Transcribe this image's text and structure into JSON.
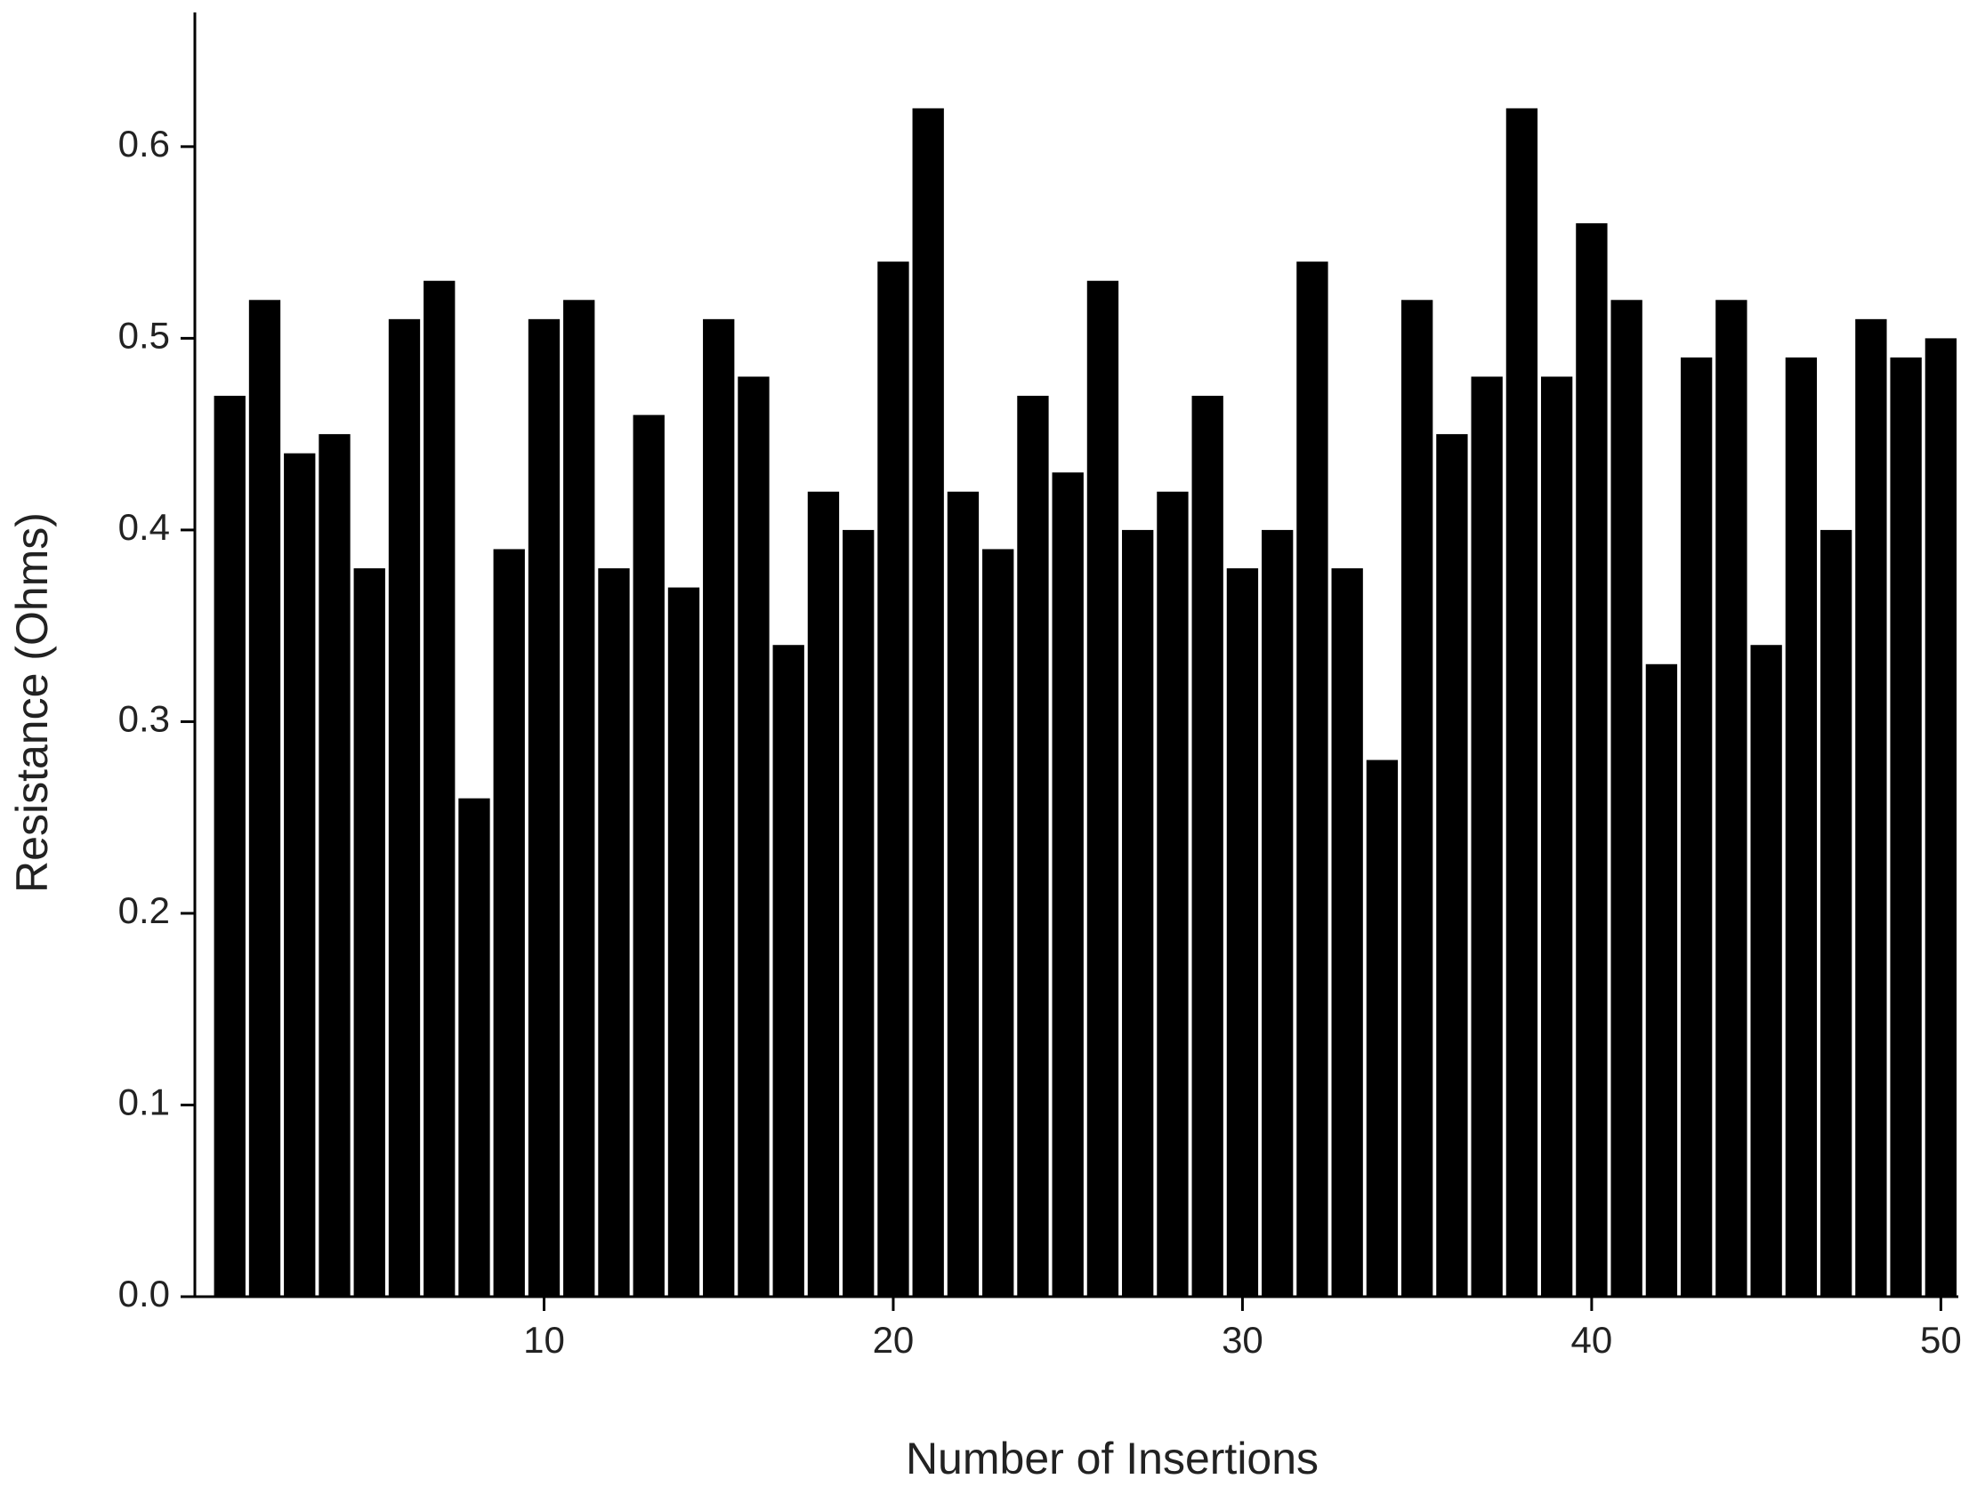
{
  "chart_data": {
    "type": "bar",
    "x_label": "Number of Insertions",
    "y_label": "Resistance (Ohms)",
    "x": [
      1,
      2,
      3,
      4,
      5,
      6,
      7,
      8,
      9,
      10,
      11,
      12,
      13,
      14,
      15,
      16,
      17,
      18,
      19,
      20,
      21,
      22,
      23,
      24,
      25,
      26,
      27,
      28,
      29,
      30,
      31,
      32,
      33,
      34,
      35,
      36,
      37,
      38,
      39,
      40,
      41,
      42,
      43,
      44,
      45,
      46,
      47,
      48,
      49,
      50
    ],
    "values": [
      0.47,
      0.52,
      0.44,
      0.45,
      0.38,
      0.51,
      0.53,
      0.26,
      0.39,
      0.51,
      0.52,
      0.38,
      0.46,
      0.37,
      0.51,
      0.48,
      0.34,
      0.42,
      0.4,
      0.54,
      0.62,
      0.42,
      0.39,
      0.47,
      0.43,
      0.53,
      0.4,
      0.42,
      0.47,
      0.38,
      0.4,
      0.54,
      0.38,
      0.28,
      0.52,
      0.45,
      0.48,
      0.62,
      0.48,
      0.56,
      0.52,
      0.33,
      0.49,
      0.52,
      0.34,
      0.49,
      0.4,
      0.51,
      0.49,
      0.5
    ],
    "color": "#000000",
    "xlim": [
      0,
      50.5
    ],
    "xticks": [
      10,
      20,
      30,
      40,
      50
    ],
    "ylim": [
      0,
      0.67
    ],
    "yticks": [
      {
        "value": 0,
        "label": "0.0"
      },
      0.1,
      0.2,
      0.3,
      0.4,
      0.5,
      0.6
    ],
    "grid": false
  }
}
